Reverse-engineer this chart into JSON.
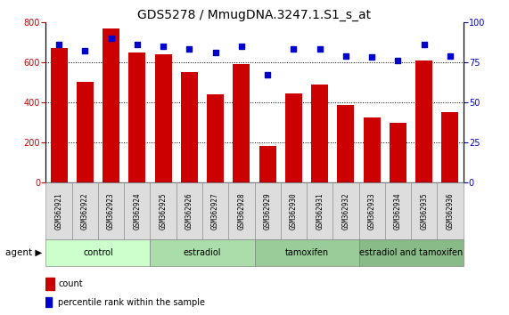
{
  "title": "GDS5278 / MmugDNA.3247.1.S1_s_at",
  "samples": [
    "GSM362921",
    "GSM362922",
    "GSM362923",
    "GSM362924",
    "GSM362925",
    "GSM362926",
    "GSM362927",
    "GSM362928",
    "GSM362929",
    "GSM362930",
    "GSM362931",
    "GSM362932",
    "GSM362933",
    "GSM362934",
    "GSM362935",
    "GSM362936"
  ],
  "counts": [
    670,
    500,
    770,
    650,
    640,
    550,
    440,
    590,
    185,
    445,
    490,
    385,
    325,
    300,
    610,
    350
  ],
  "percentiles": [
    86,
    82,
    90,
    86,
    85,
    83,
    81,
    85,
    67,
    83,
    83,
    79,
    78,
    76,
    86,
    79
  ],
  "groups": [
    {
      "label": "control",
      "start": 0,
      "end": 4,
      "color": "#ccffcc"
    },
    {
      "label": "estradiol",
      "start": 4,
      "end": 8,
      "color": "#aaddaa"
    },
    {
      "label": "tamoxifen",
      "start": 8,
      "end": 12,
      "color": "#99cc99"
    },
    {
      "label": "estradiol and tamoxifen",
      "start": 12,
      "end": 16,
      "color": "#88bb88"
    }
  ],
  "bar_color": "#cc0000",
  "dot_color": "#0000cc",
  "ylim_left": [
    0,
    800
  ],
  "ylim_right": [
    0,
    100
  ],
  "yticks_left": [
    0,
    200,
    400,
    600,
    800
  ],
  "yticks_right": [
    0,
    25,
    50,
    75,
    100
  ],
  "agent_label": "agent",
  "legend_count_label": "count",
  "legend_percentile_label": "percentile rank within the sample",
  "title_fontsize": 10,
  "tick_fontsize": 7,
  "sample_fontsize": 5.5,
  "group_fontsize": 7,
  "legend_fontsize": 7
}
